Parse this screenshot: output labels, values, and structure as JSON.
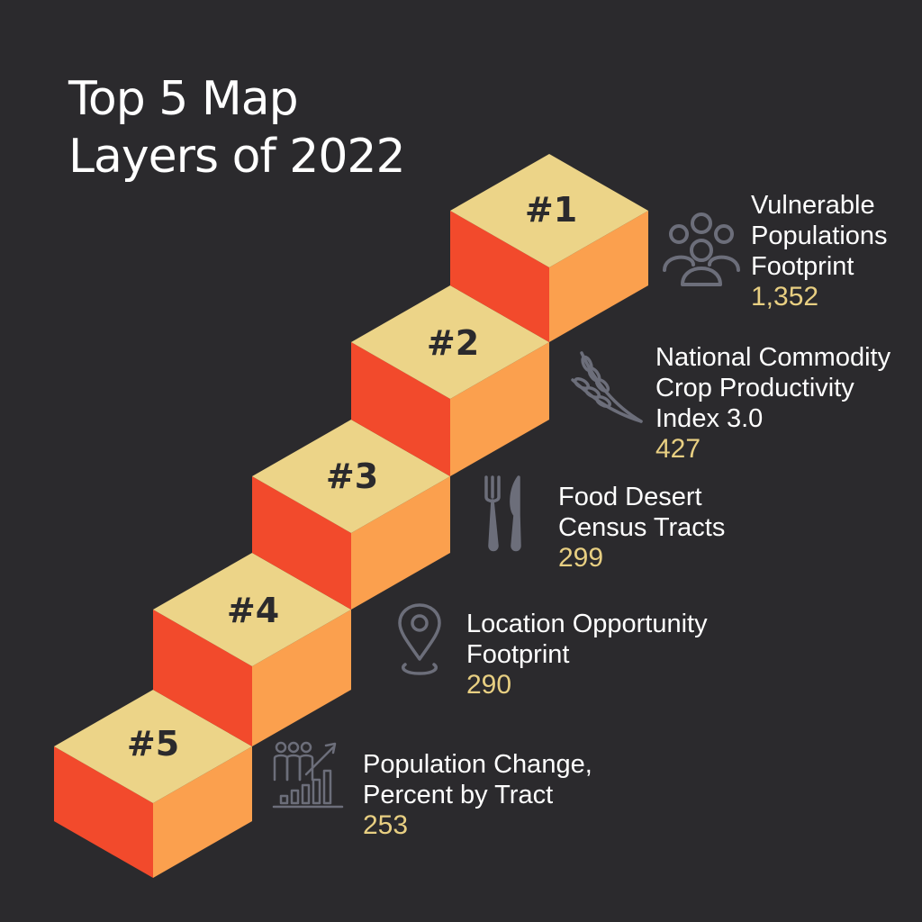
{
  "title": {
    "line1": "Top 5 Map",
    "line2": "Layers of 2022"
  },
  "colors": {
    "background": "#2b2a2d",
    "cube_top": "#ecd488",
    "cube_left": "#f24a2c",
    "cube_right": "#fba04e",
    "value_text": "#e8cf82",
    "icon_stroke": "#6c6e7a"
  },
  "layers": [
    {
      "rank": "#1",
      "name_lines": [
        "Vulnerable",
        "Populations",
        "Footprint"
      ],
      "value": "1,352",
      "icon": "people-group-icon"
    },
    {
      "rank": "#2",
      "name_lines": [
        "National Commodity",
        "Crop Productivity",
        "Index 3.0"
      ],
      "value": "427",
      "icon": "wheat-icon"
    },
    {
      "rank": "#3",
      "name_lines": [
        "Food Desert",
        "Census Tracts"
      ],
      "value": "299",
      "icon": "fork-knife-icon"
    },
    {
      "rank": "#4",
      "name_lines": [
        "Location Opportunity",
        "Footprint"
      ],
      "value": "290",
      "icon": "location-pin-icon"
    },
    {
      "rank": "#5",
      "name_lines": [
        "Population Change,",
        "Percent by Tract"
      ],
      "value": "253",
      "icon": "population-growth-icon"
    }
  ]
}
